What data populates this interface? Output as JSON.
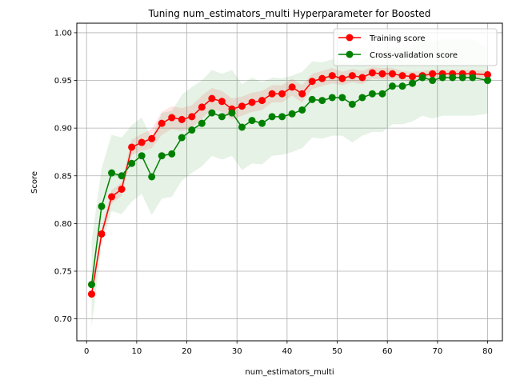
{
  "chart_data": {
    "type": "line",
    "title": "Tuning num_estimators_multi Hyperparameter for Boosted",
    "xlabel": "num_estimators_multi",
    "ylabel": "Score",
    "xlim": [
      -1.95,
      82.95
    ],
    "ylim": [
      0.677,
      1.01
    ],
    "xticks": [
      0,
      10,
      20,
      30,
      40,
      50,
      60,
      70,
      80
    ],
    "yticks": [
      0.7,
      0.75,
      0.8,
      0.85,
      0.9,
      0.95,
      1.0
    ],
    "ytick_labels": [
      "0.70",
      "0.75",
      "0.80",
      "0.85",
      "0.90",
      "0.95",
      "1.00"
    ],
    "grid": true,
    "legend_position": "top-right",
    "x": [
      1,
      3,
      5,
      7,
      9,
      11,
      13,
      15,
      17,
      19,
      21,
      23,
      25,
      27,
      29,
      31,
      33,
      35,
      37,
      39,
      41,
      43,
      45,
      47,
      49,
      51,
      53,
      55,
      57,
      59,
      61,
      63,
      65,
      67,
      69,
      71,
      73,
      75,
      77,
      80
    ],
    "series": [
      {
        "name": "Training score",
        "color": "#ff0000",
        "values": [
          0.726,
          0.789,
          0.828,
          0.836,
          0.88,
          0.885,
          0.889,
          0.905,
          0.911,
          0.909,
          0.912,
          0.922,
          0.931,
          0.928,
          0.92,
          0.923,
          0.927,
          0.929,
          0.936,
          0.936,
          0.943,
          0.936,
          0.949,
          0.952,
          0.955,
          0.952,
          0.955,
          0.953,
          0.958,
          0.957,
          0.957,
          0.955,
          0.954,
          0.955,
          0.957,
          0.957,
          0.957,
          0.957,
          0.957,
          0.956
        ],
        "band": [
          0.006,
          0.006,
          0.007,
          0.007,
          0.008,
          0.009,
          0.01,
          0.012,
          0.012,
          0.012,
          0.012,
          0.012,
          0.011,
          0.011,
          0.011,
          0.01,
          0.01,
          0.01,
          0.009,
          0.009,
          0.009,
          0.009,
          0.008,
          0.008,
          0.008,
          0.007,
          0.007,
          0.007,
          0.006,
          0.006,
          0.006,
          0.005,
          0.005,
          0.005,
          0.004,
          0.004,
          0.004,
          0.004,
          0.004,
          0.004
        ]
      },
      {
        "name": "Cross-validation score",
        "color": "#008000",
        "values": [
          0.736,
          0.818,
          0.853,
          0.85,
          0.863,
          0.871,
          0.849,
          0.871,
          0.873,
          0.89,
          0.898,
          0.905,
          0.916,
          0.912,
          0.916,
          0.901,
          0.908,
          0.905,
          0.912,
          0.912,
          0.915,
          0.919,
          0.93,
          0.929,
          0.932,
          0.932,
          0.925,
          0.932,
          0.936,
          0.936,
          0.944,
          0.944,
          0.947,
          0.953,
          0.95,
          0.953,
          0.953,
          0.953,
          0.953,
          0.95
        ],
        "band": [
          0.045,
          0.04,
          0.04,
          0.04,
          0.04,
          0.04,
          0.04,
          0.045,
          0.045,
          0.045,
          0.045,
          0.045,
          0.045,
          0.045,
          0.045,
          0.045,
          0.045,
          0.043,
          0.041,
          0.04,
          0.04,
          0.04,
          0.04,
          0.04,
          0.04,
          0.04,
          0.04,
          0.04,
          0.04,
          0.04,
          0.04,
          0.04,
          0.04,
          0.04,
          0.04,
          0.04,
          0.04,
          0.04,
          0.04,
          0.035
        ]
      }
    ]
  }
}
